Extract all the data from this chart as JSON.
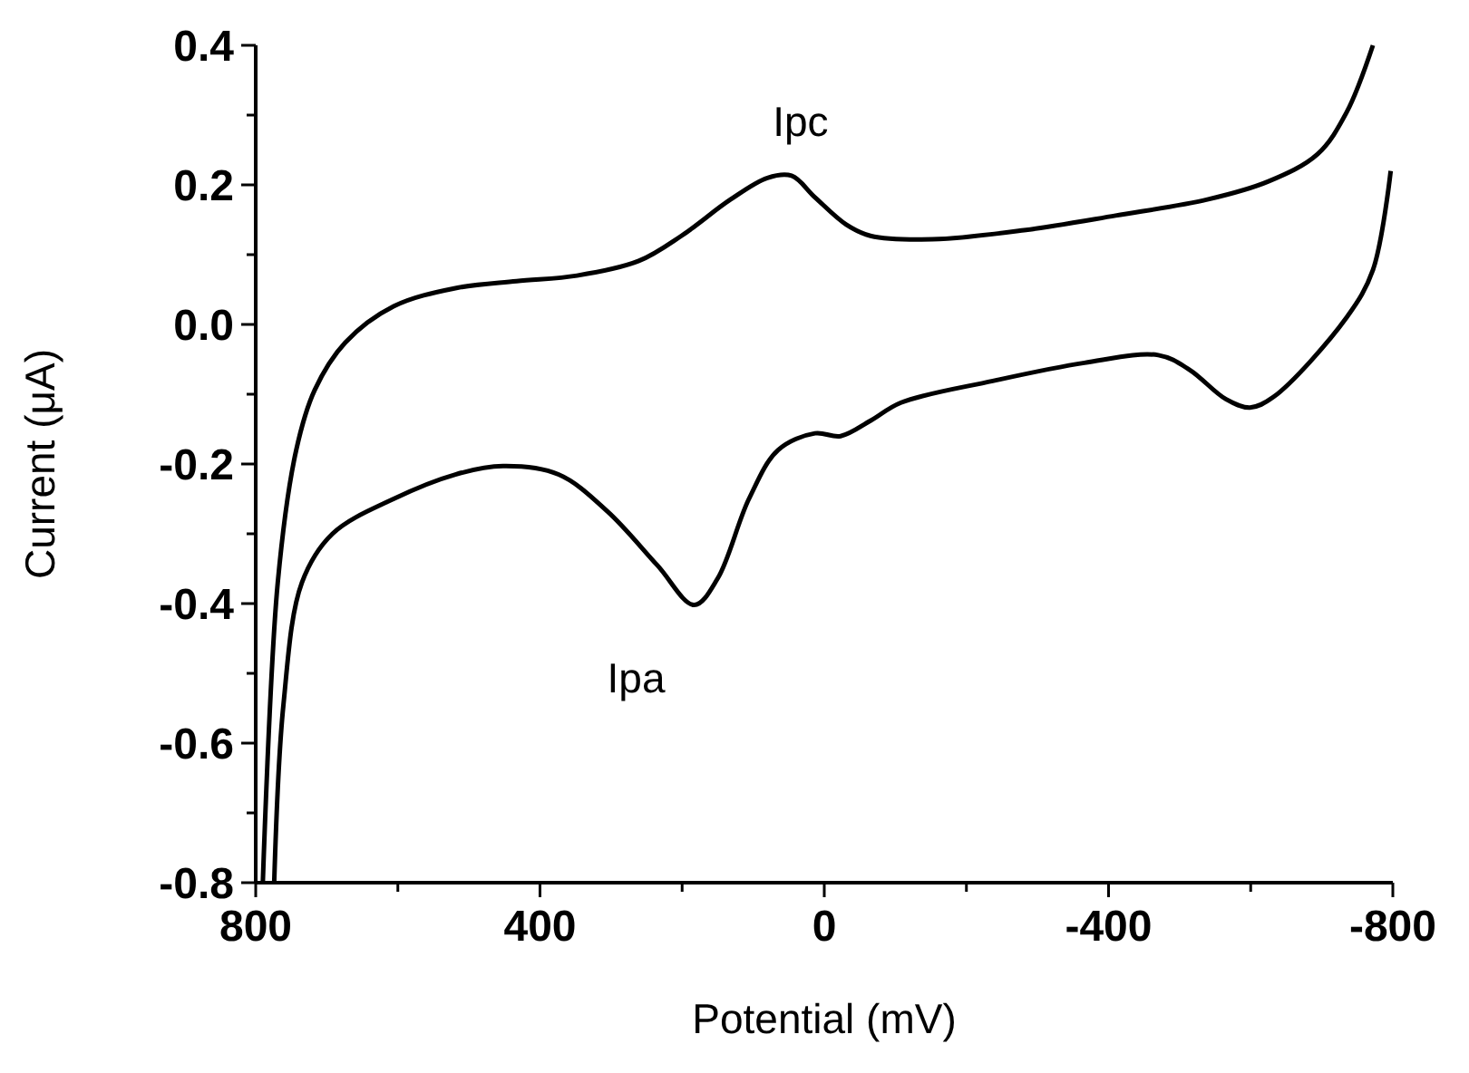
{
  "chart_data": {
    "type": "line",
    "xlabel": "Potential (mV)",
    "ylabel": "Current (μA)",
    "xlim": [
      800,
      -800
    ],
    "ylim": [
      -0.8,
      0.4
    ],
    "xticks": [
      800,
      {
        "value": 600,
        "label": null
      },
      400,
      {
        "value": 200,
        "label": null
      },
      0,
      {
        "value": -200,
        "label": null
      },
      -400,
      {
        "value": -600,
        "label": null
      },
      -800
    ],
    "yticks": [
      {
        "value": -0.8,
        "label": "-0.8"
      },
      {
        "value": -0.7,
        "label": null
      },
      {
        "value": -0.6,
        "label": "-0.6"
      },
      {
        "value": -0.5,
        "label": null
      },
      {
        "value": -0.4,
        "label": "-0.4"
      },
      {
        "value": -0.3,
        "label": null
      },
      {
        "value": -0.2,
        "label": "-0.2"
      },
      {
        "value": -0.1,
        "label": null
      },
      {
        "value": 0,
        "label": "0.0"
      },
      {
        "value": 0.1,
        "label": null
      },
      {
        "value": 0.2,
        "label": "0.2"
      },
      {
        "value": 0.3,
        "label": null
      },
      {
        "value": 0.4,
        "label": "0.4"
      }
    ],
    "grid": false,
    "marker": "none",
    "line_style": "solid",
    "series": [
      {
        "color": "#000000",
        "x": [
          790,
          769,
          743,
          717,
          674,
          606,
          519,
          433,
          348,
          261,
          201,
          132,
          80,
          46,
          13,
          -31,
          -65,
          -152,
          -281,
          -410,
          -539,
          -625,
          -694,
          -735,
          -772
        ],
        "values": [
          -0.8,
          -0.37,
          -0.18,
          -0.094,
          -0.026,
          0.026,
          0.052,
          0.062,
          0.07,
          0.091,
          0.127,
          0.179,
          0.21,
          0.213,
          0.182,
          0.143,
          0.127,
          0.122,
          0.135,
          0.156,
          0.179,
          0.205,
          0.244,
          0.304,
          0.4
        ]
      },
      {
        "color": "#000000",
        "x": [
          774,
          761,
          735,
          692,
          606,
          519,
          452,
          374,
          305,
          235,
          183,
          150,
          106,
          65,
          13,
          -23,
          -65,
          -108,
          -237,
          -366,
          -470,
          -514,
          -565,
          -599,
          -632,
          -735,
          -772,
          -797
        ],
        "values": [
          -0.8,
          -0.545,
          -0.37,
          -0.3,
          -0.25,
          -0.215,
          -0.203,
          -0.215,
          -0.268,
          -0.345,
          -0.402,
          -0.364,
          -0.25,
          -0.18,
          -0.156,
          -0.16,
          -0.138,
          -0.112,
          -0.081,
          -0.055,
          -0.044,
          -0.065,
          -0.107,
          -0.119,
          -0.104,
          0.01,
          0.078,
          0.22
        ]
      }
    ],
    "annotations": [
      {
        "text": "Ipc",
        "x": 46,
        "y": 0.213
      },
      {
        "text": "Ipa",
        "x": 183,
        "y": -0.402
      }
    ]
  }
}
